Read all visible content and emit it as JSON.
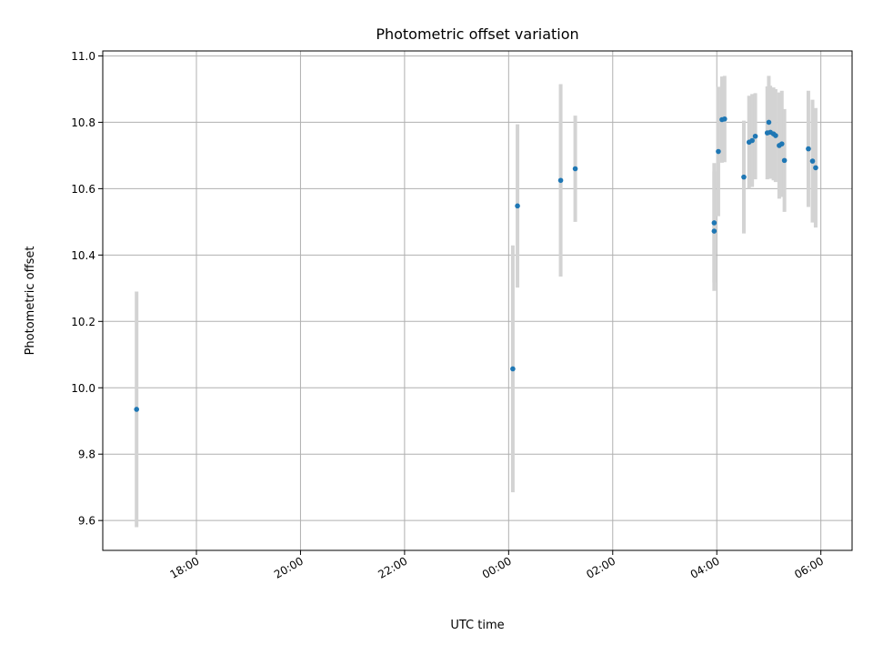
{
  "chart_data": {
    "type": "scatter",
    "title": "Photometric offset variation",
    "xlabel": "UTC time",
    "ylabel": "Photometric offset",
    "x_unit": "hours relative to 00:00 UTC",
    "xlim": [
      -7.8,
      6.6
    ],
    "ylim": [
      9.51,
      11.015
    ],
    "x_ticks": [
      {
        "value": -6,
        "label": "18:00"
      },
      {
        "value": -4,
        "label": "20:00"
      },
      {
        "value": -2,
        "label": "22:00"
      },
      {
        "value": 0,
        "label": "00:00"
      },
      {
        "value": 2,
        "label": "02:00"
      },
      {
        "value": 4,
        "label": "04:00"
      },
      {
        "value": 6,
        "label": "06:00"
      }
    ],
    "y_ticks": [
      {
        "value": 9.6,
        "label": "9.6"
      },
      {
        "value": 9.8,
        "label": "9.8"
      },
      {
        "value": 10.0,
        "label": "10.0"
      },
      {
        "value": 10.2,
        "label": "10.2"
      },
      {
        "value": 10.4,
        "label": "10.4"
      },
      {
        "value": 10.6,
        "label": "10.6"
      },
      {
        "value": 10.8,
        "label": "10.8"
      },
      {
        "value": 11.0,
        "label": "11.0"
      }
    ],
    "grid": true,
    "point_color": "#1f77b4",
    "errorbar_color": "#d3d3d3",
    "points": [
      {
        "x": -7.15,
        "y": 9.935,
        "err": 0.355
      },
      {
        "x": 0.08,
        "y": 10.057,
        "err": 0.372
      },
      {
        "x": 0.17,
        "y": 10.548,
        "err": 0.246
      },
      {
        "x": 1.0,
        "y": 10.625,
        "err": 0.29
      },
      {
        "x": 1.28,
        "y": 10.66,
        "err": 0.16
      },
      {
        "x": 3.95,
        "y": 10.497,
        "err": 0.18
      },
      {
        "x": 3.95,
        "y": 10.472,
        "err": 0.18
      },
      {
        "x": 4.03,
        "y": 10.712,
        "err": 0.195
      },
      {
        "x": 4.1,
        "y": 10.808,
        "err": 0.13
      },
      {
        "x": 4.15,
        "y": 10.81,
        "err": 0.13
      },
      {
        "x": 4.52,
        "y": 10.635,
        "err": 0.17
      },
      {
        "x": 4.62,
        "y": 10.74,
        "err": 0.14
      },
      {
        "x": 4.68,
        "y": 10.745,
        "err": 0.14
      },
      {
        "x": 4.74,
        "y": 10.758,
        "err": 0.13
      },
      {
        "x": 4.97,
        "y": 10.768,
        "err": 0.14
      },
      {
        "x": 5.0,
        "y": 10.8,
        "err": 0.14
      },
      {
        "x": 5.03,
        "y": 10.77,
        "err": 0.14
      },
      {
        "x": 5.09,
        "y": 10.765,
        "err": 0.14
      },
      {
        "x": 5.13,
        "y": 10.76,
        "err": 0.14
      },
      {
        "x": 5.2,
        "y": 10.73,
        "err": 0.16
      },
      {
        "x": 5.25,
        "y": 10.735,
        "err": 0.16
      },
      {
        "x": 5.3,
        "y": 10.685,
        "err": 0.155
      },
      {
        "x": 5.76,
        "y": 10.72,
        "err": 0.175
      },
      {
        "x": 5.84,
        "y": 10.683,
        "err": 0.185
      },
      {
        "x": 5.9,
        "y": 10.663,
        "err": 0.18
      }
    ]
  }
}
